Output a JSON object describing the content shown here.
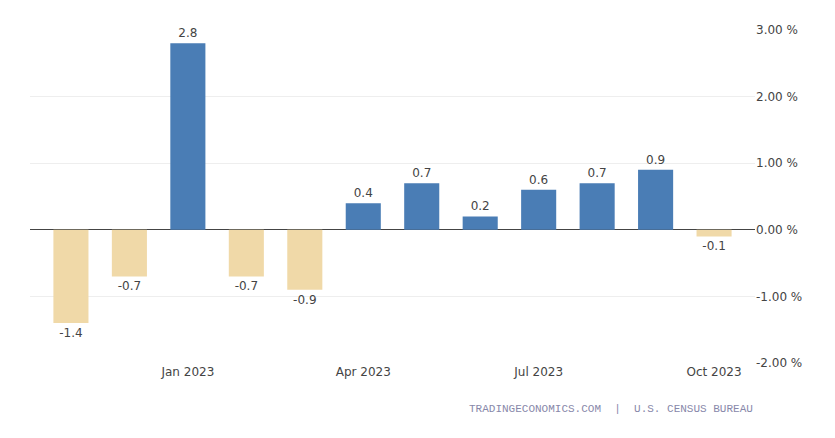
{
  "chart_data": {
    "type": "bar",
    "categories": [
      null,
      null,
      "Jan 2023",
      null,
      null,
      "Apr 2023",
      null,
      null,
      "Jul 2023",
      null,
      null,
      "Oct 2023"
    ],
    "values": [
      -1.4,
      -0.7,
      2.8,
      -0.7,
      -0.9,
      0.4,
      0.7,
      0.2,
      0.6,
      0.7,
      0.9,
      -0.1
    ],
    "colors": [
      "#f0d9a8",
      "#f0d9a8",
      "#4a7db5",
      "#f0d9a8",
      "#f0d9a8",
      "#4a7db5",
      "#4a7db5",
      "#4a7db5",
      "#4a7db5",
      "#4a7db5",
      "#4a7db5",
      "#f0d9a8"
    ],
    "ylim": [
      -2.0,
      3.0
    ],
    "yticks": [
      {
        "value": -2.0,
        "label": "-2.00 %"
      },
      {
        "value": -1.0,
        "label": "-1.00 %"
      },
      {
        "value": 0.0,
        "label": "0.00 %"
      },
      {
        "value": 1.0,
        "label": "1.00 %"
      },
      {
        "value": 2.0,
        "label": "2.00 %"
      },
      {
        "value": 3.0,
        "label": "3.00 %"
      }
    ],
    "grid": true,
    "data_labels": true,
    "annotations": [
      "TRADINGECONOMICS.COM  |  U.S. CENSUS BUREAU"
    ]
  }
}
